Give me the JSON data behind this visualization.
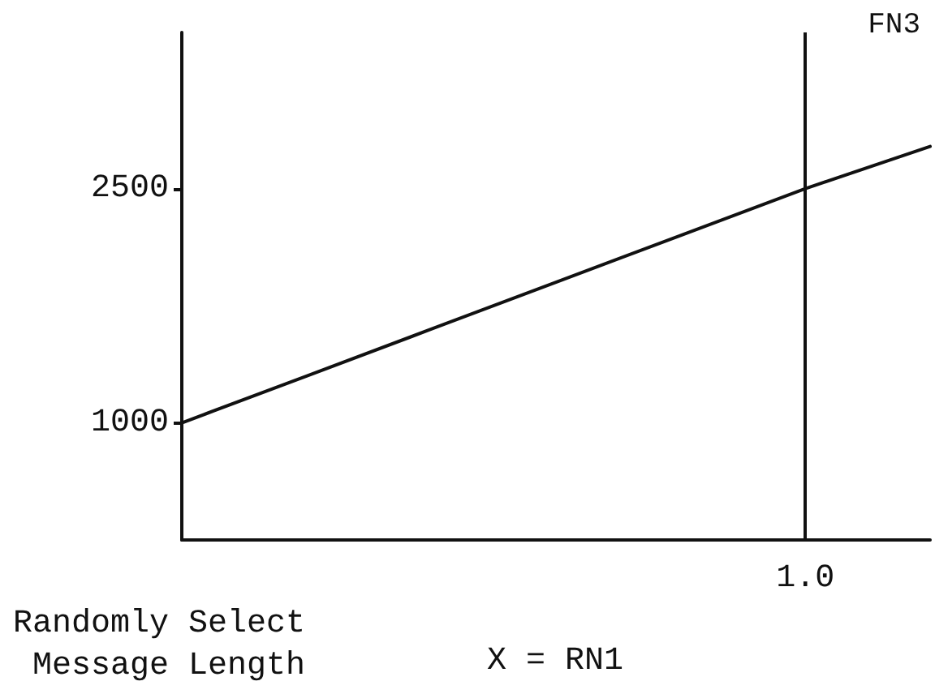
{
  "chart_data": {
    "type": "line",
    "title": "FN3",
    "xlabel": "Randomly Select Message Length",
    "annotations": [
      "X = RN1"
    ],
    "categories": [
      null,
      null,
      null,
      null,
      null,
      "1.0",
      null
    ],
    "series": [
      {
        "color": "#111111",
        "values": [
          1000,
          1300,
          1600,
          1900,
          2200,
          2500,
          2770
        ]
      }
    ],
    "ylim": [
      250,
      3500
    ],
    "yticks": [
      1000,
      2500
    ],
    "ref_lines": [
      {
        "axis": "x",
        "value": "1.0",
        "color": "#111111"
      }
    ],
    "grid": false,
    "marker": "none",
    "line_style": "solid"
  }
}
